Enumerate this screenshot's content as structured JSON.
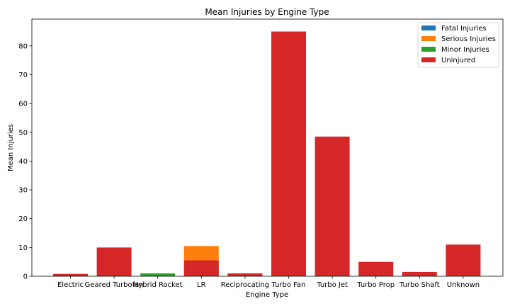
{
  "chart_data": {
    "type": "bar",
    "stacked": false,
    "title": "Mean Injuries by Engine Type",
    "xlabel": "Engine Type",
    "ylabel": "Mean Injuries",
    "categories": [
      "Electric",
      "Geared Turbofan",
      "Hybrid Rocket",
      "LR",
      "Reciprocating",
      "Turbo Fan",
      "Turbo Jet",
      "Turbo Prop",
      "Turbo Shaft",
      "Unknown"
    ],
    "series": [
      {
        "name": "Fatal Injuries",
        "color": "#1f77b4",
        "values": [
          0,
          0,
          0,
          0,
          0.6,
          0.2,
          0.3,
          0.4,
          0.3,
          0.5
        ]
      },
      {
        "name": "Serious Injuries",
        "color": "#ff7f0e",
        "values": [
          0,
          0,
          0,
          10.5,
          0.2,
          0.1,
          0.2,
          0.2,
          0.3,
          0.3
        ]
      },
      {
        "name": "Minor Injuries",
        "color": "#2ca02c",
        "values": [
          0,
          0,
          1.0,
          0,
          0.3,
          0.6,
          0.3,
          0.3,
          0.3,
          0.5
        ]
      },
      {
        "name": "Uninjured",
        "color": "#d62728",
        "values": [
          0.8,
          10.0,
          0,
          5.5,
          1.0,
          85.0,
          48.5,
          5.0,
          1.5,
          11.0
        ]
      }
    ],
    "ylim": [
      0,
      89.3
    ],
    "yticks": [
      0,
      10,
      20,
      30,
      40,
      50,
      60,
      70,
      80
    ],
    "grid": false,
    "legend_position": "top-right"
  }
}
